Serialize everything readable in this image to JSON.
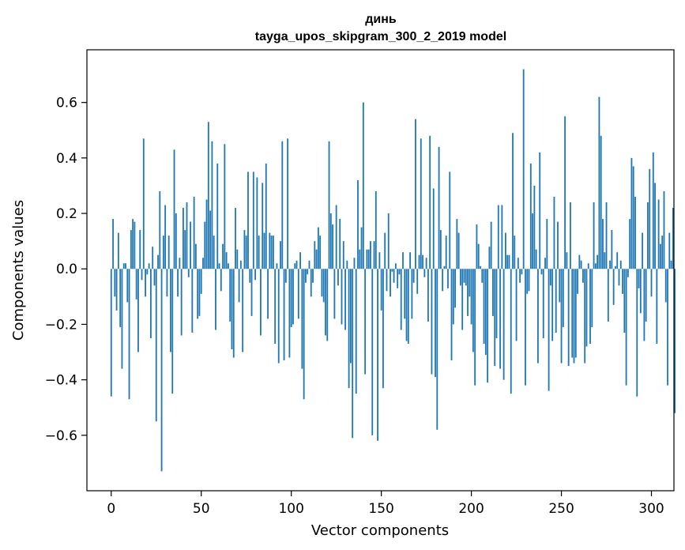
{
  "chart_data": {
    "type": "bar",
    "title": "динь",
    "subtitle": "tayga_upos_skipgram_300_2_2019 model",
    "xlabel": "Vector components",
    "ylabel": "Components values",
    "xlim": [
      -13.5,
      312.5
    ],
    "ylim": [
      -0.8,
      0.79
    ],
    "xticks": [
      0,
      50,
      100,
      150,
      200,
      250,
      300
    ],
    "xtick_labels": [
      "0",
      "50",
      "100",
      "150",
      "200",
      "250",
      "300"
    ],
    "yticks": [
      -0.6,
      -0.4,
      -0.2,
      0.0,
      0.2,
      0.4,
      0.6
    ],
    "ytick_labels": [
      "−0.6",
      "−0.4",
      "−0.2",
      "0.0",
      "0.2",
      "0.4",
      "0.6"
    ],
    "bar_color": "#1f77b4",
    "grid": false,
    "legend": "none",
    "values": [
      -0.46,
      0.18,
      -0.1,
      -0.15,
      0.13,
      -0.21,
      -0.36,
      0.02,
      0.02,
      -0.12,
      -0.47,
      0.14,
      0.18,
      0.17,
      -0.11,
      -0.3,
      0.14,
      -0.04,
      0.47,
      -0.1,
      -0.02,
      0.02,
      -0.25,
      0.08,
      -0.06,
      -0.55,
      0.05,
      0.28,
      -0.73,
      0.12,
      0.23,
      -0.1,
      0.12,
      -0.3,
      -0.45,
      0.43,
      0.2,
      -0.1,
      0.04,
      -0.24,
      0.22,
      0.14,
      0.24,
      -0.03,
      0.17,
      -0.23,
      0.26,
      0.09,
      -0.18,
      -0.17,
      -0.09,
      0.04,
      0.17,
      0.25,
      0.53,
      0.21,
      0.46,
      0.12,
      -0.22,
      0.38,
      0.02,
      -0.08,
      0.09,
      0.45,
      0.06,
      0.02,
      -0.19,
      -0.29,
      -0.32,
      0.22,
      0.07,
      -0.12,
      0.03,
      -0.3,
      0.14,
      0.12,
      0.35,
      -0.05,
      -0.17,
      0.35,
      -0.04,
      0.33,
      0.12,
      -0.24,
      0.31,
      0.13,
      0.38,
      -0.18,
      0.13,
      0.12,
      0.12,
      -0.27,
      0.02,
      -0.34,
      0.1,
      0.46,
      -0.33,
      -0.05,
      0.47,
      -0.32,
      -0.21,
      -0.2,
      0.02,
      0.03,
      -0.18,
      0.06,
      -0.36,
      -0.47,
      -0.05,
      -0.02,
      0.03,
      -0.1,
      -0.05,
      0.1,
      0.07,
      0.15,
      0.12,
      -0.1,
      -0.12,
      -0.24,
      -0.26,
      0.46,
      0.2,
      0.16,
      -0.18,
      0.23,
      -0.06,
      0.18,
      -0.2,
      0.1,
      -0.22,
      0.03,
      -0.43,
      -0.34,
      -0.61,
      0.04,
      -0.45,
      0.32,
      0.07,
      0.15,
      0.6,
      -0.38,
      0.07,
      0.07,
      0.1,
      -0.6,
      0.1,
      0.28,
      -0.62,
      0.06,
      -0.15,
      -0.43,
      0.13,
      -0.08,
      0.2,
      -0.1,
      -0.01,
      -0.05,
      0.02,
      -0.07,
      -0.02,
      -0.22,
      0.06,
      -0.18,
      -0.26,
      -0.27,
      0.06,
      -0.18,
      -0.05,
      0.54,
      -0.09,
      0.05,
      0.47,
      0.05,
      -0.03,
      0.04,
      -0.19,
      0.48,
      -0.38,
      0.29,
      -0.39,
      -0.58,
      0.44,
      0.14,
      -0.08,
      0.01,
      0.12,
      -0.07,
      0.35,
      -0.33,
      -0.2,
      -0.14,
      0.18,
      0.13,
      -0.06,
      -0.22,
      -0.05,
      -0.06,
      -0.17,
      -0.1,
      -0.2,
      -0.3,
      -0.42,
      0.16,
      0.09,
      0.01,
      -0.05,
      -0.27,
      -0.31,
      -0.41,
      0.08,
      0.17,
      -0.17,
      -0.35,
      -0.25,
      0.23,
      -0.36,
      0.23,
      -0.4,
      0.13,
      0.05,
      0.05,
      -0.45,
      0.49,
      0.12,
      -0.26,
      0.04,
      -0.05,
      -0.02,
      0.72,
      -0.42,
      -0.09,
      -0.08,
      0.38,
      0.2,
      0.3,
      0.07,
      -0.34,
      0.42,
      -0.02,
      -0.25,
      0.04,
      0.18,
      -0.44,
      -0.06,
      -0.26,
      0.26,
      -0.23,
      0.17,
      -0.12,
      -0.34,
      -0.21,
      0.55,
      0.06,
      -0.35,
      0.24,
      -0.32,
      -0.34,
      -0.32,
      -0.09,
      0.05,
      0.03,
      -0.05,
      -0.34,
      -0.28,
      0.02,
      -0.27,
      -0.21,
      0.24,
      0.02,
      0.05,
      0.62,
      0.48,
      0.18,
      0.06,
      0.24,
      -0.19,
      0.03,
      0.14,
      -0.13,
      0.01,
      0.06,
      -0.06,
      0.03,
      -0.09,
      -0.23,
      -0.42,
      -0.03,
      0.18,
      0.4,
      0.37,
      0.26,
      -0.46,
      -0.07,
      -0.16,
      0.13,
      -0.26,
      -0.19,
      0.24,
      0.36,
      -0.1,
      0.42,
      0.31,
      -0.27,
      0.25,
      0.09,
      0.12,
      0.28,
      -0.12,
      -0.42,
      0.13,
      0.03,
      0.22,
      -0.52
    ]
  }
}
